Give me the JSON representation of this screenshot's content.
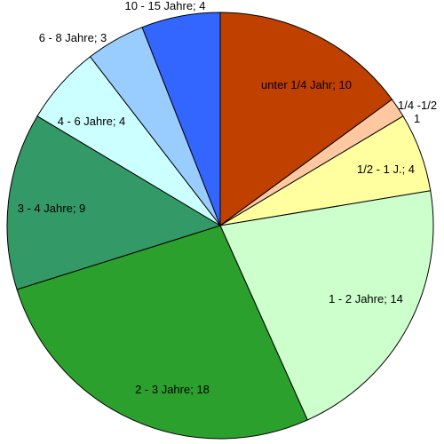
{
  "chart_data": {
    "type": "pie",
    "title": "",
    "legend": "none",
    "start_angle_deg": 0,
    "direction": "clockwise",
    "slices": [
      {
        "category": "unter 1/4 Jahr",
        "value": 10,
        "label": "unter 1/4 Jahr; 10",
        "color": "#c04000"
      },
      {
        "category": "1/4 -1/2",
        "value": 1,
        "label": "1/4 -1/2",
        "label_value": "1",
        "color": "#ffc8a0"
      },
      {
        "category": "1/2 - 1 J.",
        "value": 4,
        "label": "1/2 - 1 J.; 4",
        "color": "#ffffa0"
      },
      {
        "category": "1 - 2 Jahre",
        "value": 14,
        "label": "1 - 2 Jahre; 14",
        "color": "#ccffcc"
      },
      {
        "category": "2 - 3 Jahre",
        "value": 18,
        "label": "2 - 3 Jahre; 18",
        "color": "#2ca02c"
      },
      {
        "category": "3 - 4 Jahre",
        "value": 9,
        "label": "3 - 4 Jahre; 9",
        "color": "#339966"
      },
      {
        "category": "4 - 6 Jahre",
        "value": 4,
        "label": "4 - 6 Jahre; 4",
        "color": "#ccffff"
      },
      {
        "category": "6 - 8 Jahre",
        "value": 3,
        "label": "6 - 8 Jahre; 3",
        "color": "#99ccff"
      },
      {
        "category": "10 - 15 Jahre",
        "value": 4,
        "label": "10 - 15 Jahre; 4",
        "color": "#3366ff"
      }
    ]
  }
}
